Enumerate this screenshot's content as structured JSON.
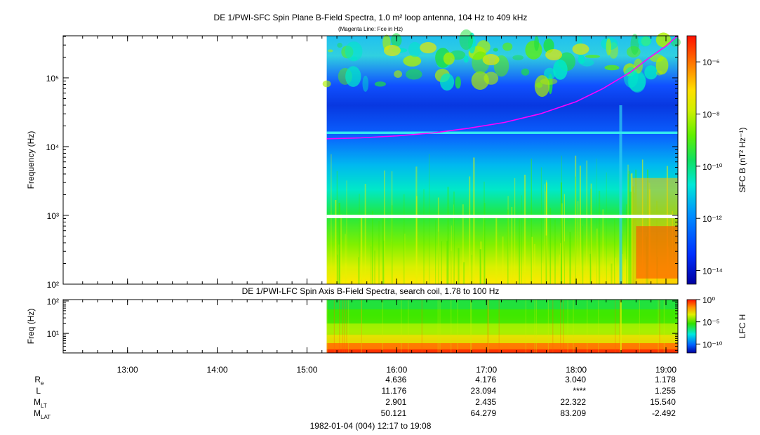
{
  "chart_data": [
    {
      "type": "heatmap",
      "title": "DE 1/PWI-SFC  Spin Plane B-Field Spectra, 1.0 m² loop antenna, 104 Hz to 409 kHz",
      "subtitle": "(Magenta Line: Fce in Hz)",
      "ylabel": "Frequency (Hz)",
      "yscale": "log",
      "ylim": [
        100,
        409000
      ],
      "ytick_values": [
        100,
        1000,
        10000,
        100000
      ],
      "ytick_labels": [
        "10²",
        "10³",
        "10⁴",
        "10⁵"
      ],
      "xlim_hours": [
        12.283,
        19.133
      ],
      "data_start_hour": 15.22,
      "colorbar": {
        "label": "SFC B (nT² Hz⁻¹)",
        "scale": "log",
        "range": [
          3e-15,
          1e-05
        ],
        "tick_labels": [
          "10⁻⁶",
          "10⁻⁸",
          "10⁻¹⁰",
          "10⁻¹²",
          "10⁻¹⁴"
        ],
        "tick_values": [
          1e-06,
          1e-08,
          1e-10,
          1e-12,
          1e-14
        ]
      },
      "series": [
        {
          "name": "Magenta Line: Fce in Hz",
          "color": "#ff00ff",
          "x_hours": [
            15.22,
            15.6,
            16.0,
            16.4,
            16.8,
            17.2,
            17.6,
            18.0,
            18.3,
            18.6,
            18.8,
            19.0,
            19.13
          ],
          "y_hz": [
            13000,
            13400,
            14300,
            15800,
            18500,
            22500,
            30000,
            45000,
            70000,
            120000,
            190000,
            290000,
            409000
          ]
        }
      ],
      "colors": {
        "magenta_line": "#ff00ff",
        "cyan_band": "#33e8f0"
      }
    },
    {
      "type": "heatmap",
      "title": "DE 1/PWI-LFC  Spin Axis B-Field Spectra, search coil, 1.78 to 100 Hz",
      "ylabel": "Freq (Hz)",
      "yscale": "log",
      "ylim": [
        2.5,
        110
      ],
      "ytick_values": [
        10,
        100
      ],
      "ytick_labels": [
        "10¹",
        "10²"
      ],
      "xlim_hours": [
        12.283,
        19.133
      ],
      "data_start_hour": 15.22,
      "colorbar": {
        "label": "LFC H",
        "scale": "log",
        "range": [
          1e-12,
          1
        ],
        "tick_labels": [
          "10⁰",
          "10⁻⁵",
          "10⁻¹⁰"
        ],
        "tick_values": [
          1,
          1e-05,
          1e-10
        ]
      }
    }
  ],
  "time_axis": {
    "tick_values": [
      13,
      14,
      15,
      16,
      17,
      18,
      19
    ],
    "tick_labels": [
      "13:00",
      "14:00",
      "15:00",
      "16:00",
      "17:00",
      "18:00",
      "19:00"
    ]
  },
  "ephemeris": {
    "rows": [
      {
        "label": "R",
        "sub": "e",
        "values": [
          "4.636",
          "4.176",
          "3.040",
          "1.178"
        ]
      },
      {
        "label": "L",
        "sub": "",
        "values": [
          "11.176",
          "23.094",
          "****",
          "1.255"
        ]
      },
      {
        "label": "M",
        "sub": "LT",
        "values": [
          "2.901",
          "2.435",
          "22.322",
          "15.540"
        ]
      },
      {
        "label": "M",
        "sub": "LAT",
        "values": [
          "50.121",
          "64.279",
          "83.209",
          "-2.492"
        ]
      }
    ],
    "column_hours": [
      16,
      17,
      18,
      19
    ]
  },
  "footer": "1982-01-04 (004) 12:17 to 19:08"
}
